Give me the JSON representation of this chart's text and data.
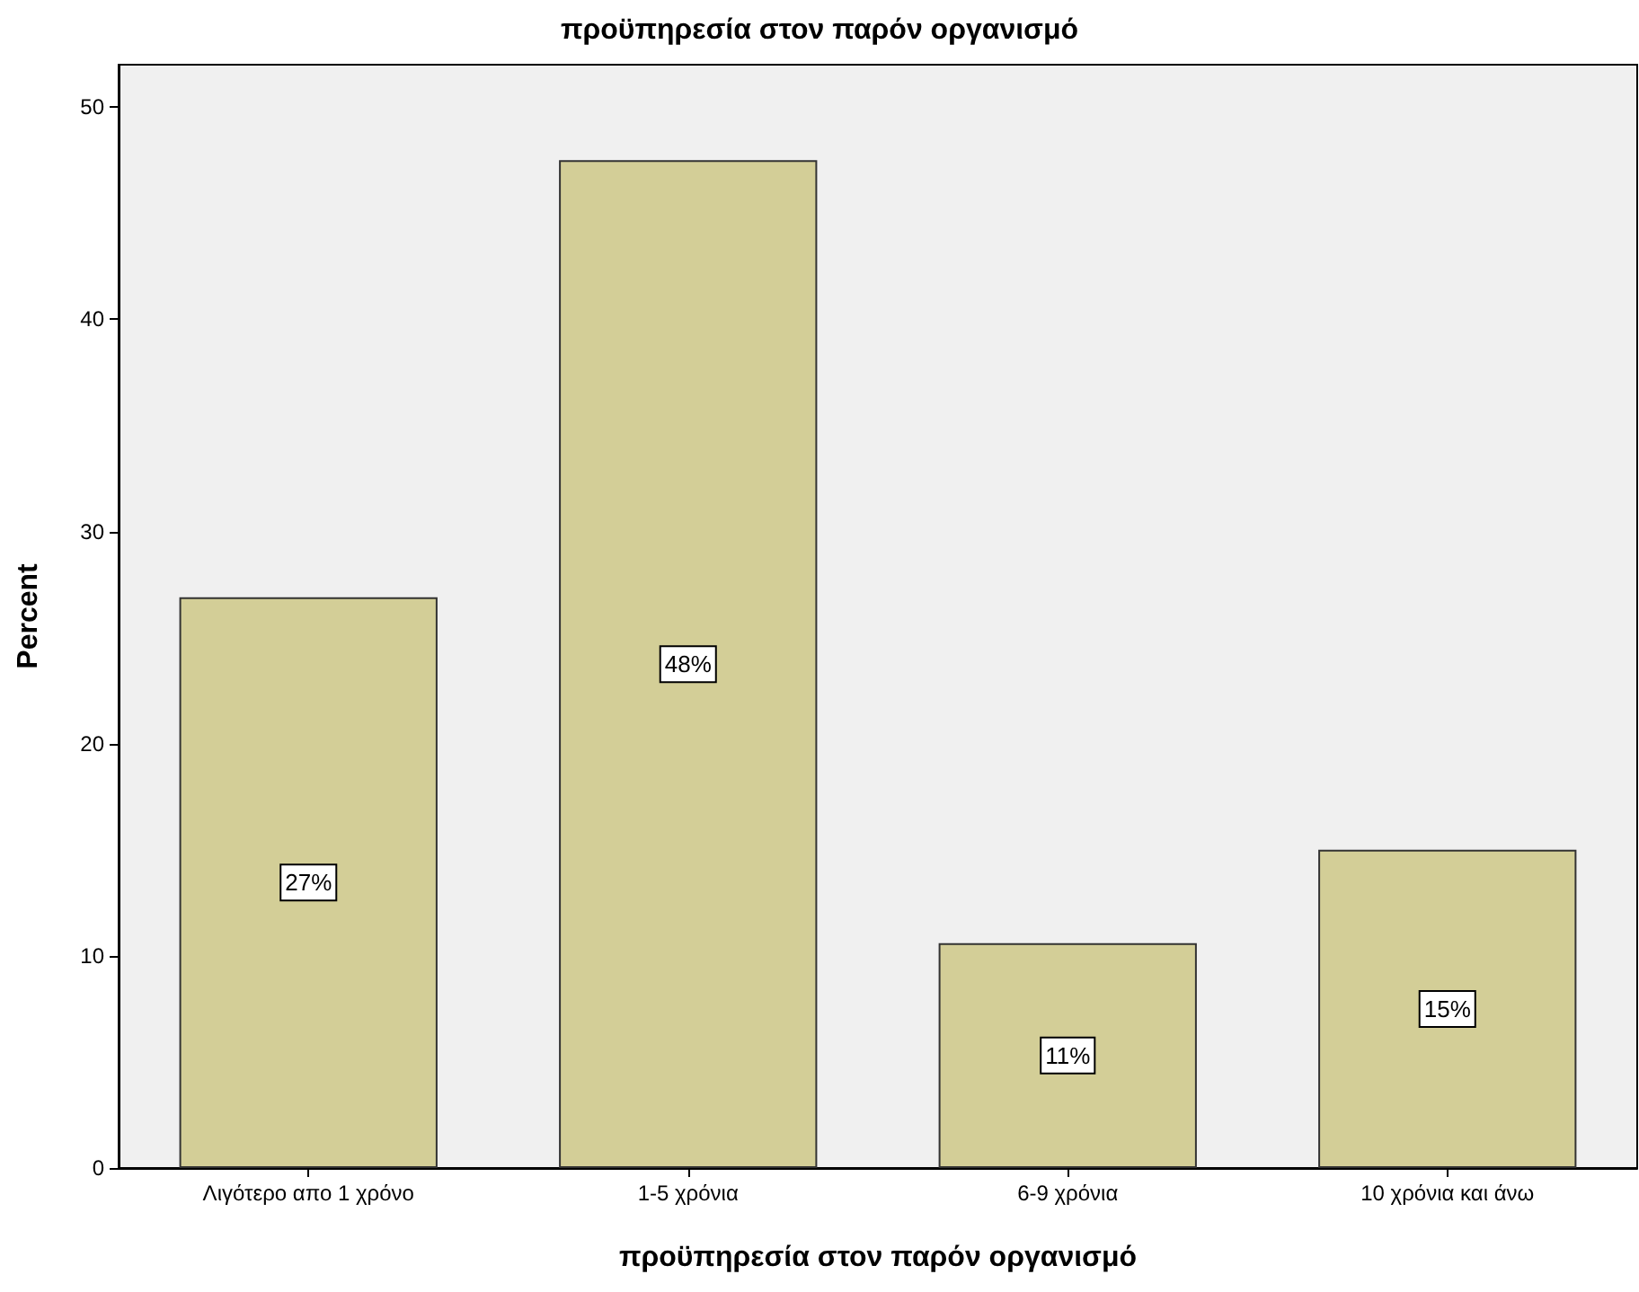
{
  "chart_data": {
    "type": "bar",
    "title": "προϋπηρεσία στον παρόν οργανισμό",
    "xlabel": "προϋπηρεσία στον παρόν οργανισμό",
    "ylabel": "Percent",
    "categories": [
      "Λιγότερο απο 1 χρόνο",
      "1-5 χρόνια",
      "6-9 χρόνια",
      "10 χρόνια και άνω"
    ],
    "values": [
      26.9,
      47.5,
      10.6,
      15.0
    ],
    "value_labels": [
      "27%",
      "48%",
      "11%",
      "15%"
    ],
    "color": "#d3ce97",
    "ylim": [
      0,
      52
    ],
    "yticks": [
      0,
      10,
      20,
      30,
      40,
      50
    ],
    "grid": false
  }
}
